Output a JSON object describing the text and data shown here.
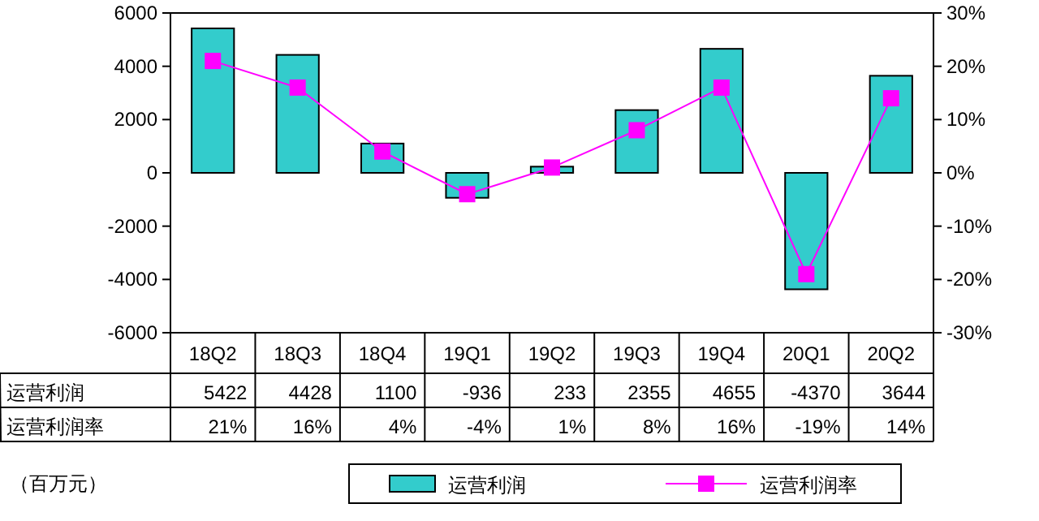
{
  "chart_data": {
    "type": "bar",
    "categories": [
      "18Q2",
      "18Q3",
      "18Q4",
      "19Q1",
      "19Q2",
      "19Q3",
      "19Q4",
      "20Q1",
      "20Q2"
    ],
    "series": [
      {
        "name": "运营利润",
        "color": "#33cccc",
        "values": [
          5422,
          4428,
          1100,
          -936,
          233,
          2355,
          4655,
          -4370,
          3644
        ],
        "value_labels": [
          "5422",
          "4428",
          "1100",
          "-936",
          "233",
          "2355",
          "4655",
          "-4370",
          "3644"
        ]
      },
      {
        "name": "运营利润率",
        "type": "line",
        "axis": "y2",
        "color": "#ff00ff",
        "values": [
          21,
          16,
          4,
          -4,
          1,
          8,
          16,
          -19,
          14
        ],
        "value_labels": [
          "21%",
          "16%",
          "4%",
          "-4%",
          "1%",
          "8%",
          "16%",
          "-19%",
          "14%"
        ]
      }
    ],
    "ylim": [
      -6000,
      6000
    ],
    "yticks": [
      -6000,
      -4000,
      -2000,
      0,
      2000,
      4000,
      6000
    ],
    "y2lim": [
      -30,
      30
    ],
    "y2ticks": [
      {
        "value": -30,
        "label": "-30%"
      },
      {
        "value": -20,
        "label": "-20%"
      },
      {
        "value": -10,
        "label": "-10%"
      },
      {
        "value": 0,
        "label": "0%"
      },
      {
        "value": 10,
        "label": "10%"
      },
      {
        "value": 20,
        "label": "20%"
      },
      {
        "value": 30,
        "label": "30%"
      }
    ],
    "marker": "square",
    "line_style": "solid",
    "legend": "bottom",
    "annotations": [
      "（百万元）"
    ]
  }
}
